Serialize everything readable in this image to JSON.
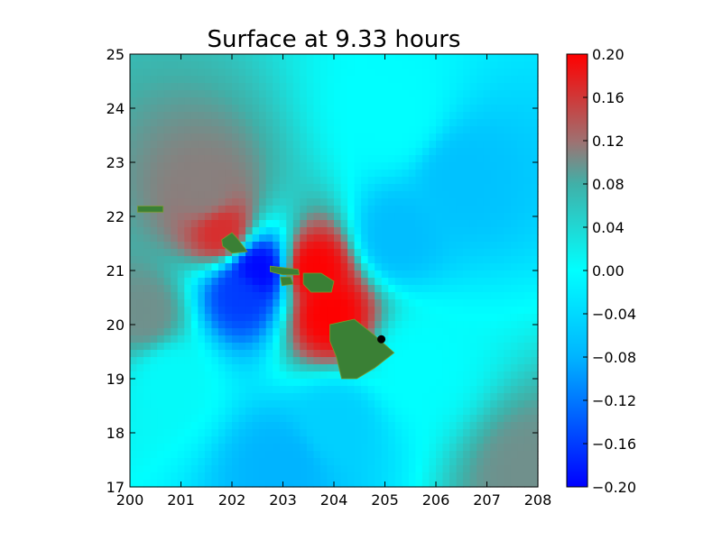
{
  "chart_data": {
    "type": "heatmap",
    "title": "Surface at 9.33 hours",
    "xlabel": "",
    "ylabel": "",
    "x_range": [
      200,
      208
    ],
    "y_range": [
      17,
      25
    ],
    "x_ticks": [
      "200",
      "201",
      "202",
      "203",
      "204",
      "205",
      "206",
      "207",
      "208"
    ],
    "y_ticks": [
      "17",
      "18",
      "19",
      "20",
      "21",
      "22",
      "23",
      "24",
      "25"
    ],
    "colorbar": {
      "range": [
        -0.2,
        0.2
      ],
      "ticks": [
        "0.20",
        "0.16",
        "0.12",
        "0.08",
        "0.04",
        "0.00",
        "−0.04",
        "−0.08",
        "−0.12",
        "−0.16",
        "−0.20"
      ],
      "color_stops": [
        {
          "value": -0.2,
          "color": "#0000ff"
        },
        {
          "value": -0.08,
          "color": "#00b4ff"
        },
        {
          "value": 0.0,
          "color": "#00ffff"
        },
        {
          "value": 0.08,
          "color": "#40b0a8"
        },
        {
          "value": 0.12,
          "color": "#a07070"
        },
        {
          "value": 0.2,
          "color": "#ff0000"
        }
      ]
    },
    "field_features": [
      {
        "lon": 201.5,
        "lat": 22.4,
        "value": 0.11
      },
      {
        "lon": 200.3,
        "lat": 20.2,
        "value": 0.1
      },
      {
        "lon": 202.5,
        "lat": 21.0,
        "value": -0.2
      },
      {
        "lon": 202.2,
        "lat": 20.6,
        "value": -0.16
      },
      {
        "lon": 205.2,
        "lat": 21.6,
        "value": -0.07
      },
      {
        "lon": 206.5,
        "lat": 22.7,
        "value": -0.065
      },
      {
        "lon": 203.0,
        "lat": 17.4,
        "value": -0.08
      },
      {
        "lon": 204.0,
        "lat": 18.2,
        "value": -0.05
      },
      {
        "lon": 207.9,
        "lat": 17.2,
        "value": 0.1
      },
      {
        "lon": 203.9,
        "lat": 20.2,
        "value": 0.2
      },
      {
        "lon": 203.6,
        "lat": 21.0,
        "value": 0.2
      },
      {
        "lon": 201.8,
        "lat": 21.7,
        "value": 0.17
      },
      {
        "lon": 205.6,
        "lat": 19.3,
        "value": 0.0
      },
      {
        "lon": 200.8,
        "lat": 19.0,
        "value": 0.005
      },
      {
        "lon": 205.2,
        "lat": 23.8,
        "value": 0.0
      }
    ],
    "land_color": "#3a8035",
    "islands": [
      {
        "name": "niihau",
        "polygon": [
          [
            200.15,
            22.19
          ],
          [
            200.65,
            22.19
          ],
          [
            200.65,
            22.08
          ],
          [
            200.15,
            22.08
          ]
        ]
      },
      {
        "name": "kauai",
        "polygon": [
          [
            201.8,
            21.57
          ],
          [
            202.0,
            21.7
          ],
          [
            202.1,
            21.6
          ],
          [
            202.3,
            21.35
          ],
          [
            202.0,
            21.32
          ],
          [
            201.82,
            21.45
          ]
        ]
      },
      {
        "name": "oahu",
        "polygon": [
          [
            202.75,
            21.08
          ],
          [
            203.3,
            21.02
          ],
          [
            203.32,
            20.92
          ],
          [
            203.0,
            20.92
          ],
          [
            202.75,
            20.98
          ]
        ]
      },
      {
        "name": "molokai_lanai",
        "polygon": [
          [
            202.95,
            20.88
          ],
          [
            203.15,
            20.88
          ],
          [
            203.2,
            20.75
          ],
          [
            202.98,
            20.72
          ]
        ]
      },
      {
        "name": "maui",
        "polygon": [
          [
            203.4,
            20.95
          ],
          [
            203.75,
            20.95
          ],
          [
            204.0,
            20.8
          ],
          [
            203.95,
            20.6
          ],
          [
            203.55,
            20.6
          ],
          [
            203.4,
            20.75
          ]
        ]
      },
      {
        "name": "hawaii",
        "polygon": [
          [
            203.92,
            20.0
          ],
          [
            204.4,
            20.1
          ],
          [
            204.8,
            19.8
          ],
          [
            205.18,
            19.48
          ],
          [
            204.8,
            19.2
          ],
          [
            204.45,
            19.0
          ],
          [
            204.15,
            19.0
          ],
          [
            204.05,
            19.4
          ],
          [
            203.92,
            19.7
          ]
        ]
      }
    ],
    "markers": [
      {
        "lon": 204.93,
        "lat": 19.73,
        "color": "#000000"
      }
    ]
  }
}
